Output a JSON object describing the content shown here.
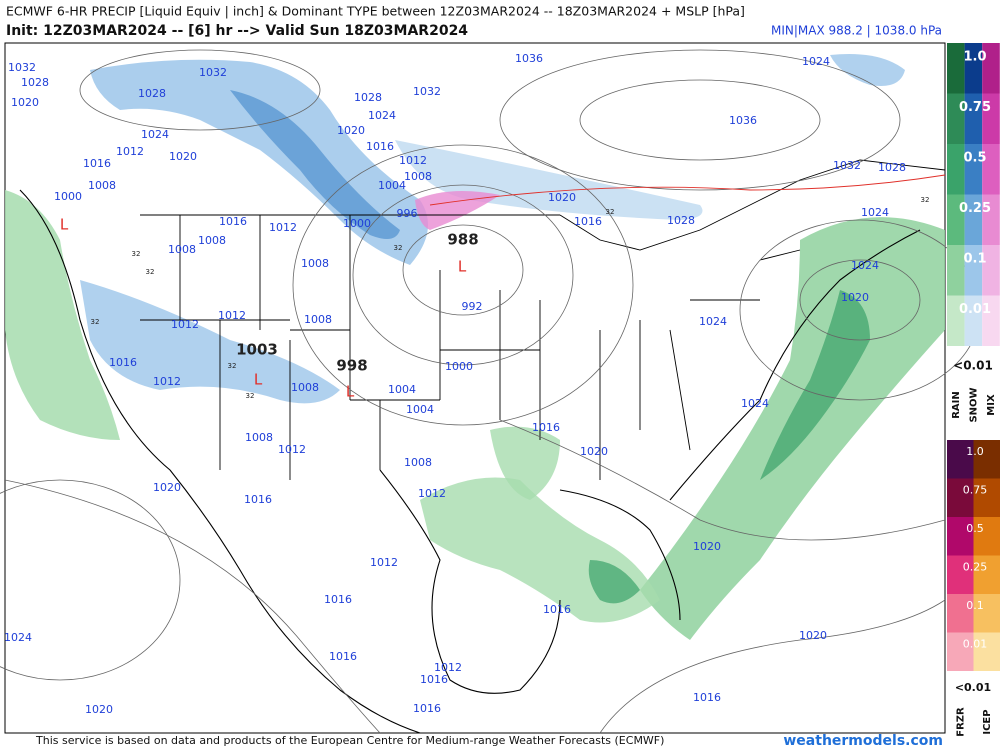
{
  "header": {
    "title": "ECMWF 6-HR PRECIP [Liquid Equiv | inch] & Dominant TYPE between 12Z03MAR2024 -- 18Z03MAR2024 + MSLP [hPa]",
    "init": "Init: 12Z03MAR2024 -- [6] hr --> Valid Sun 18Z03MAR2024",
    "minmax": "MIN|MAX 988.2 | 1038.0 hPa"
  },
  "map": {
    "isobar_labels": [
      "1032",
      "1028",
      "1020",
      "1032",
      "1028",
      "1024",
      "1012",
      "1020",
      "1016",
      "1008",
      "1000",
      "1036",
      "1032",
      "1028",
      "1024",
      "1020",
      "1016",
      "1012",
      "1008",
      "1004",
      "1020",
      "1016",
      "1028",
      "996",
      "1000",
      "1016",
      "1012",
      "1008",
      "1008",
      "1008",
      "1024",
      "1036",
      "1032",
      "1028",
      "1024",
      "1024",
      "1020",
      "1024",
      "992",
      "1012",
      "1012",
      "1008",
      "1016",
      "1012",
      "1008",
      "1004",
      "1000",
      "1004",
      "1024",
      "1016",
      "1020",
      "1008",
      "1012",
      "1008",
      "1012",
      "1020",
      "1016",
      "1020",
      "1012",
      "1016",
      "1016",
      "1024",
      "1020",
      "1016",
      "1012",
      "1016",
      "1016",
      "1016",
      "1020"
    ],
    "pressure_centers": [
      "988",
      "998",
      "1003"
    ],
    "low_markers": [
      "L",
      "L",
      "L",
      "L"
    ],
    "small_labels": [
      "32",
      "32",
      "32",
      "32",
      "32",
      "32",
      "32",
      "32"
    ]
  },
  "legend": {
    "rain_snow_mix": {
      "levels": [
        "1.0",
        "0.75",
        "0.5",
        "0.25",
        "0.1",
        "0.01"
      ],
      "below": "<0.01",
      "types": [
        "RAIN",
        "SNOW",
        "MIX"
      ]
    },
    "frzr_icep": {
      "levels": [
        "1.0",
        "0.75",
        "0.5",
        "0.25",
        "0.1",
        "0.01"
      ],
      "below": "<0.01",
      "types": [
        "FRZR",
        "ICEP"
      ]
    }
  },
  "footer": {
    "credit": "This service is based on data and products of the European Centre for Medium-range Weather Forecasts (ECMWF)",
    "site": "weathermodels.com"
  }
}
